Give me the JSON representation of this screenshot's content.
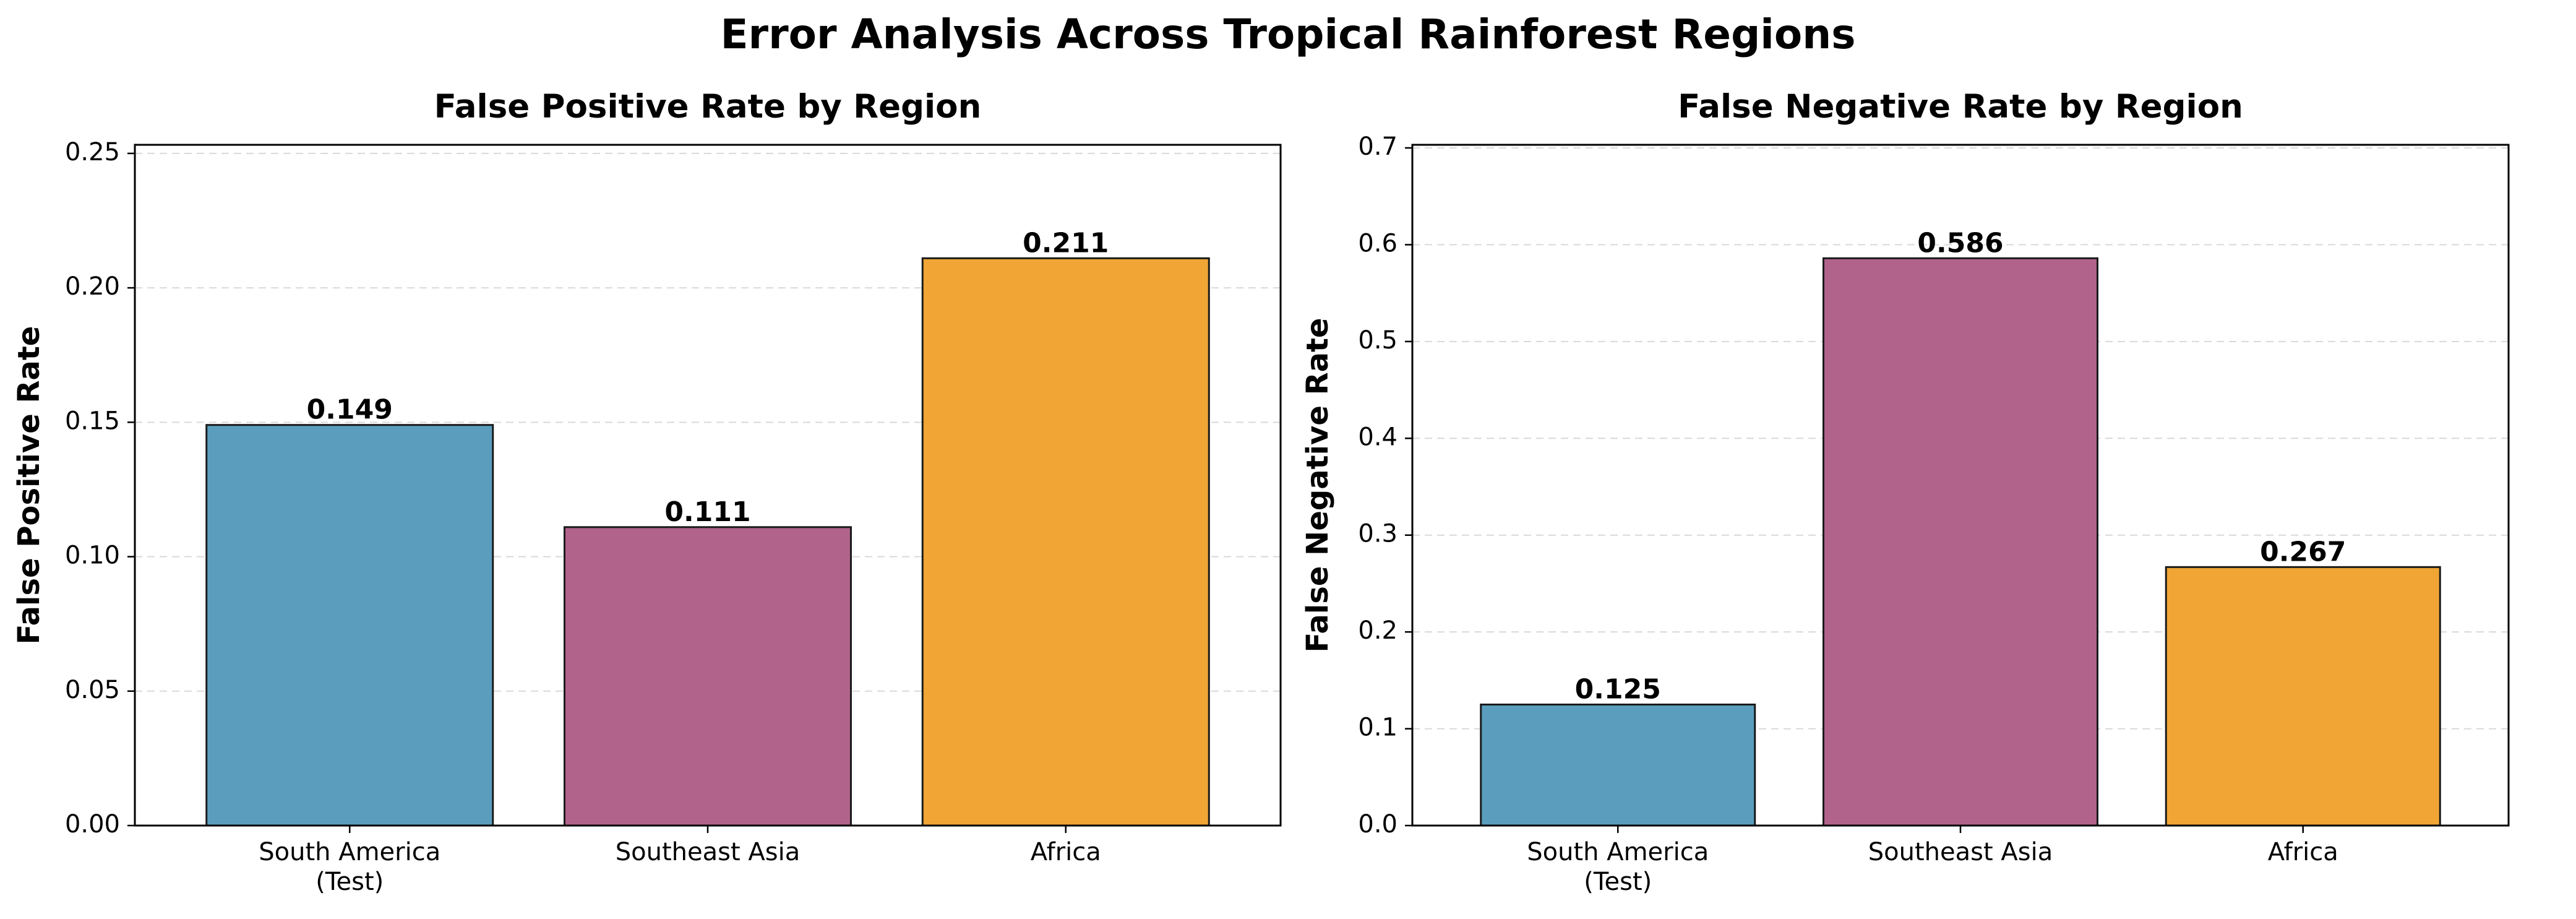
{
  "figure": {
    "title": "Error Analysis Across Tropical Rainforest Regions"
  },
  "chart_data": [
    {
      "type": "bar",
      "title": "False Positive Rate by Region",
      "xlabel": "",
      "ylabel": "False Positive Rate",
      "categories": [
        "South America\n(Test)",
        "Southeast Asia",
        "Africa"
      ],
      "values": [
        0.149,
        0.111,
        0.211
      ],
      "value_labels": [
        "0.149",
        "0.111",
        "0.211"
      ],
      "colors": [
        "#5A9DBD",
        "#B1638B",
        "#F0A535"
      ],
      "ylim": [
        0,
        0.2532
      ],
      "yticks": [
        0.0,
        0.05,
        0.1,
        0.15,
        0.2,
        0.25
      ],
      "ytick_labels": [
        "0.00",
        "0.05",
        "0.10",
        "0.15",
        "0.20",
        "0.25"
      ],
      "grid": "y, dashed"
    },
    {
      "type": "bar",
      "title": "False Negative Rate by Region",
      "xlabel": "",
      "ylabel": "False Negative Rate",
      "categories": [
        "South America\n(Test)",
        "Southeast Asia",
        "Africa"
      ],
      "values": [
        0.125,
        0.586,
        0.267
      ],
      "value_labels": [
        "0.125",
        "0.586",
        "0.267"
      ],
      "colors": [
        "#5A9DBD",
        "#B1638B",
        "#F0A535"
      ],
      "ylim": [
        0,
        0.7032
      ],
      "yticks": [
        0.0,
        0.1,
        0.2,
        0.3,
        0.4,
        0.5,
        0.6,
        0.7
      ],
      "ytick_labels": [
        "0.0",
        "0.1",
        "0.2",
        "0.3",
        "0.4",
        "0.5",
        "0.6",
        "0.7"
      ],
      "grid": "y, dashed"
    }
  ]
}
